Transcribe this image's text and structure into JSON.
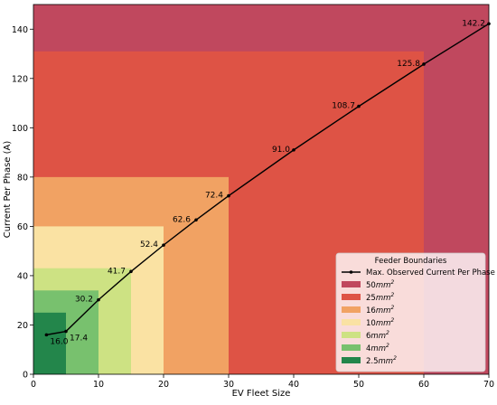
{
  "chart_data": {
    "type": "line",
    "xlabel": "EV Fleet Size",
    "ylabel": "Current Per Phase (A)",
    "xlim": [
      0,
      70
    ],
    "ylim": [
      0,
      150
    ],
    "x_ticks": [
      0,
      10,
      20,
      30,
      40,
      50,
      60,
      70
    ],
    "y_ticks": [
      0,
      20,
      40,
      60,
      80,
      100,
      120,
      140
    ],
    "grid": false,
    "legend": {
      "title": "Feeder Boundaries",
      "placement": "bottom-right",
      "entries": [
        {
          "label": "Max. Observed Current Per Phase",
          "kind": "line",
          "color": "#000000"
        },
        {
          "label": "50",
          "unit": "mm",
          "sup": "2",
          "kind": "patch",
          "color": "#c0485e"
        },
        {
          "label": "25",
          "unit": "mm",
          "sup": "2",
          "kind": "patch",
          "color": "#de5345"
        },
        {
          "label": "16",
          "unit": "mm",
          "sup": "2",
          "kind": "patch",
          "color": "#f1a263"
        },
        {
          "label": "10",
          "unit": "mm",
          "sup": "2",
          "kind": "patch",
          "color": "#fae2a3"
        },
        {
          "label": "6",
          "unit": "mm",
          "sup": "2",
          "kind": "patch",
          "color": "#cde283"
        },
        {
          "label": "4",
          "unit": "mm",
          "sup": "2",
          "kind": "patch",
          "color": "#78c16e"
        },
        {
          "label": "2.5",
          "unit": "mm",
          "sup": "2",
          "kind": "patch",
          "color": "#23864b"
        }
      ]
    },
    "regions": [
      {
        "name": "50mm2",
        "x_max": 70,
        "y_max": 150,
        "color": "#c0485e"
      },
      {
        "name": "25mm2",
        "x_max": 60,
        "y_max": 131,
        "color": "#de5345"
      },
      {
        "name": "16mm2",
        "x_max": 30,
        "y_max": 80,
        "color": "#f1a263"
      },
      {
        "name": "10mm2",
        "x_max": 20,
        "y_max": 60,
        "color": "#fae2a3"
      },
      {
        "name": "6mm2",
        "x_max": 15,
        "y_max": 43,
        "color": "#cde283"
      },
      {
        "name": "4mm2",
        "x_max": 10,
        "y_max": 34,
        "color": "#78c16e"
      },
      {
        "name": "2.5mm2",
        "x_max": 5,
        "y_max": 25,
        "color": "#23864b"
      }
    ],
    "series": [
      {
        "name": "Max. Observed Current Per Phase",
        "color": "#000000",
        "points": [
          {
            "x": 2,
            "y": 16.0,
            "label": "16.0"
          },
          {
            "x": 5,
            "y": 17.4,
            "label": "17.4"
          },
          {
            "x": 10,
            "y": 30.2,
            "label": "30.2"
          },
          {
            "x": 15,
            "y": 41.7,
            "label": "41.7"
          },
          {
            "x": 20,
            "y": 52.4,
            "label": "52.4"
          },
          {
            "x": 25,
            "y": 62.6,
            "label": "62.6"
          },
          {
            "x": 30,
            "y": 72.4,
            "label": "72.4"
          },
          {
            "x": 40,
            "y": 91.0,
            "label": "91.0"
          },
          {
            "x": 50,
            "y": 108.7,
            "label": "108.7"
          },
          {
            "x": 60,
            "y": 125.8,
            "label": "125.8"
          },
          {
            "x": 70,
            "y": 142.2,
            "label": "142.2"
          }
        ]
      }
    ]
  }
}
